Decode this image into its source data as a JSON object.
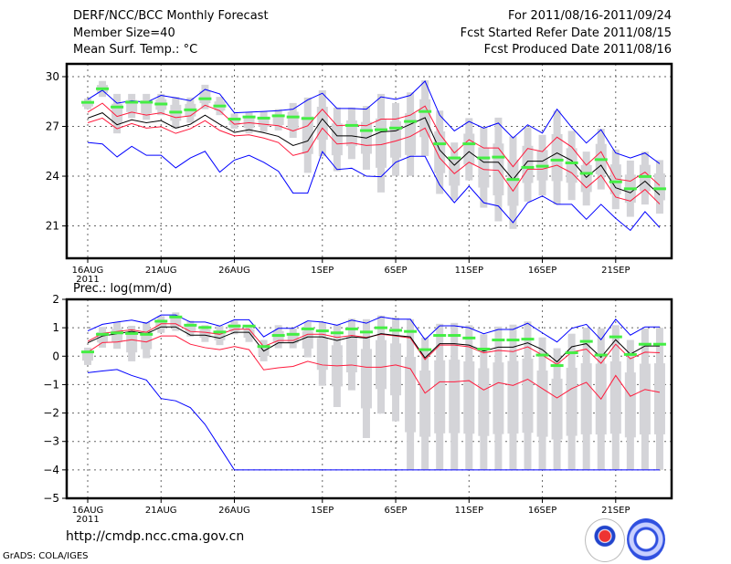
{
  "header": {
    "title": "DERF/NCC/BCC Monthly Forecast",
    "member_size": "Member Size=40",
    "variable": "Mean Surf. Temp.: °C",
    "period": "For 2011/08/16-2011/09/24",
    "start_date": "Fcst Started Refer Date 2011/08/15",
    "produced_date": "Fcst Produced Date 2011/08/16"
  },
  "footer": {
    "url": "http://cmdp.ncc.cma.gov.cn",
    "credit": "GrADS: COLA/IGES",
    "logos": [
      "BCC",
      "NCC"
    ]
  },
  "colors": {
    "max_min": "#0000ff",
    "spread": "#ff1a3c",
    "mean": "#000000",
    "green": "#44ee44",
    "box": "#d4d4d8",
    "grid": "#666666"
  },
  "chart_data": [
    {
      "type": "line",
      "name": "temperature",
      "ylabel": "",
      "ylim": [
        19.05,
        30.77
      ],
      "yticks": [
        21,
        24,
        27,
        30
      ],
      "x_days": "2011-08-16 .. 2011-09-24 (40 days)",
      "xticks": [
        {
          "day": 0,
          "label": "16AUG",
          "sub": "2011"
        },
        {
          "day": 5,
          "label": "21AUG"
        },
        {
          "day": 10,
          "label": "26AUG"
        },
        {
          "day": 16,
          "label": "1SEP"
        },
        {
          "day": 21,
          "label": "6SEP"
        },
        {
          "day": 26,
          "label": "11SEP"
        },
        {
          "day": 31,
          "label": "16SEP"
        },
        {
          "day": 36,
          "label": "21SEP"
        }
      ],
      "box_range": {
        "low": [
          28.04,
          28.78,
          26.58,
          27.5,
          27.4,
          27.68,
          26.86,
          27.22,
          28.04,
          27.68,
          26.86,
          26.58,
          26.67,
          26.76,
          26.31,
          24.2,
          25.2,
          24.3,
          25.03,
          24.39,
          23.02,
          24.02,
          24.02,
          25.21,
          22.93,
          22.56,
          23.75,
          22.1,
          21.28,
          20.82,
          22.47,
          22.83,
          22.29,
          22.56,
          22.23,
          23.2,
          22.01,
          21.55,
          22.29,
          21.74
        ],
        "high": [
          28.68,
          29.74,
          28.96,
          28.96,
          28.96,
          28.96,
          28.78,
          28.74,
          29.51,
          28.78,
          27.77,
          27.86,
          27.9,
          28.04,
          28.41,
          28.74,
          29.18,
          28.14,
          28.14,
          28.23,
          28.96,
          28.41,
          29.05,
          29.78,
          27.95,
          26.03,
          27.5,
          26.95,
          27.53,
          26.4,
          26.95,
          26.49,
          27.95,
          26.73,
          25.48,
          26.86,
          25.61,
          24.94,
          25.48,
          24.97
        ]
      },
      "series": [
        {
          "name": "max",
          "color": "#0000ff",
          "values": [
            28.63,
            29.18,
            28.4,
            28.55,
            28.45,
            28.87,
            28.72,
            28.55,
            29.23,
            28.96,
            27.82,
            27.86,
            27.9,
            27.95,
            28.04,
            28.6,
            29.0,
            28.08,
            28.08,
            28.04,
            28.78,
            28.63,
            28.87,
            29.73,
            27.68,
            26.73,
            27.3,
            26.9,
            27.2,
            26.3,
            27.1,
            26.6,
            28.04,
            26.94,
            26.0,
            26.8,
            25.4,
            25.1,
            25.4,
            24.75
          ]
        },
        {
          "name": "min",
          "color": "#0000ff",
          "values": [
            26.03,
            25.94,
            25.16,
            25.8,
            25.26,
            25.26,
            24.5,
            25.1,
            25.5,
            24.24,
            24.97,
            25.26,
            24.84,
            24.3,
            22.98,
            22.98,
            25.48,
            24.4,
            24.48,
            24.0,
            23.97,
            24.84,
            25.2,
            25.2,
            23.47,
            22.4,
            23.4,
            22.4,
            22.2,
            21.2,
            22.4,
            22.8,
            22.3,
            22.3,
            21.4,
            22.3,
            21.46,
            20.73,
            21.86,
            20.9
          ]
        },
        {
          "name": "upper",
          "color": "#ff1a3c",
          "values": [
            27.86,
            28.4,
            27.6,
            27.86,
            27.68,
            27.82,
            27.53,
            27.64,
            28.28,
            27.95,
            27.13,
            27.22,
            27.13,
            27.04,
            26.73,
            27.04,
            28.04,
            27.04,
            27.09,
            27.04,
            27.44,
            27.44,
            27.68,
            28.23,
            26.55,
            25.4,
            26.2,
            25.7,
            25.7,
            24.57,
            25.67,
            25.48,
            26.35,
            25.76,
            24.66,
            25.48,
            23.84,
            23.7,
            24.24,
            23.44
          ]
        },
        {
          "name": "lower",
          "color": "#ff1a3c",
          "values": [
            27.22,
            27.5,
            26.86,
            27.17,
            26.9,
            26.98,
            26.58,
            26.86,
            27.35,
            26.76,
            26.43,
            26.49,
            26.3,
            26.03,
            25.25,
            25.48,
            26.9,
            25.94,
            26.0,
            25.85,
            25.9,
            26.12,
            26.4,
            26.9,
            25.1,
            24.15,
            24.84,
            24.4,
            24.35,
            23.1,
            24.42,
            24.42,
            24.66,
            24.2,
            23.3,
            24.06,
            22.74,
            22.5,
            23.2,
            22.32
          ]
        },
        {
          "name": "mean",
          "color": "#000000",
          "values": [
            27.5,
            27.82,
            27.1,
            27.4,
            27.22,
            27.35,
            26.9,
            27.13,
            27.68,
            27.13,
            26.64,
            26.8,
            26.62,
            26.4,
            25.85,
            26.12,
            27.46,
            26.43,
            26.43,
            26.3,
            26.67,
            26.73,
            27.13,
            27.53,
            25.58,
            24.66,
            25.48,
            24.84,
            24.84,
            23.8,
            24.9,
            24.9,
            25.4,
            24.94,
            23.93,
            24.66,
            23.3,
            23.0,
            23.7,
            22.87
          ]
        },
        {
          "name": "green",
          "color": "#44ee44",
          "values": [
            28.45,
            29.27,
            28.17,
            28.46,
            28.46,
            28.35,
            27.86,
            28.0,
            28.67,
            28.23,
            27.44,
            27.57,
            27.5,
            27.64,
            27.57,
            27.48,
            null,
            null,
            27.06,
            26.75,
            26.8,
            26.9,
            27.3,
            27.9,
            25.95,
            25.1,
            25.95,
            25.1,
            25.15,
            23.8,
            24.53,
            24.6,
            24.97,
            24.8,
            24.17,
            25.0,
            23.66,
            23.24,
            23.98,
            23.24
          ]
        }
      ]
    },
    {
      "type": "line",
      "name": "precipitation",
      "ylabel": "Prec.: log(mm/d)",
      "ylim": [
        -5,
        2
      ],
      "yticks": [
        -5,
        -4,
        -3,
        -2,
        -1,
        0,
        1,
        2
      ],
      "xticks": [
        {
          "day": 0,
          "label": "16AUG",
          "sub": "2011"
        },
        {
          "day": 5,
          "label": "21AUG"
        },
        {
          "day": 10,
          "label": "26AUG"
        },
        {
          "day": 16,
          "label": "1SEP"
        },
        {
          "day": 21,
          "label": "6SEP"
        },
        {
          "day": 26,
          "label": "11SEP"
        },
        {
          "day": 31,
          "label": "16SEP"
        },
        {
          "day": 36,
          "label": "21SEP"
        }
      ],
      "box_range": {
        "low": [
          -0.31,
          0.3,
          0.26,
          -0.18,
          -0.07,
          0.82,
          0.89,
          0.69,
          0.5,
          0.39,
          0.77,
          0.5,
          -0.18,
          0.28,
          0.28,
          -0.04,
          -1.04,
          -1.79,
          -1.2,
          -2.88,
          -2.02,
          -2.29,
          -4,
          -4,
          -4,
          -4,
          -4,
          -4,
          -4,
          -4,
          -4,
          -4,
          -4,
          -4,
          -4,
          -4,
          -4,
          -4,
          -4,
          -4
        ],
        "high": [
          0.3,
          1.03,
          1.2,
          1.07,
          1.2,
          1.41,
          1.54,
          1.25,
          1.09,
          1.07,
          1.25,
          1.09,
          0.57,
          1.09,
          0.98,
          1.2,
          1.2,
          1.11,
          1.32,
          1.3,
          1.43,
          1.36,
          1.3,
          0.66,
          1.14,
          1.17,
          1.09,
          0.77,
          1.04,
          1.11,
          1.22,
          0.66,
          0.28,
          0.79,
          1.0,
          0.98,
          1.09,
          0.57,
          0.98,
          1.0
        ]
      },
      "series": [
        {
          "name": "max",
          "color": "#0000ff",
          "values": [
            0.89,
            1.12,
            1.2,
            1.27,
            1.16,
            1.45,
            1.45,
            1.2,
            1.2,
            1.06,
            1.28,
            1.28,
            0.68,
            0.98,
            0.98,
            1.24,
            1.2,
            1.09,
            1.27,
            1.16,
            1.38,
            1.3,
            1.3,
            0.58,
            1.07,
            1.07,
            1.0,
            0.79,
            0.94,
            0.94,
            1.16,
            0.82,
            0.5,
            0.98,
            1.12,
            0.58,
            1.3,
            0.74,
            1.03,
            1.03
          ]
        },
        {
          "name": "min",
          "color": "#0000ff",
          "values": [
            -0.58,
            -0.52,
            -0.47,
            -0.68,
            -0.84,
            -1.49,
            -1.57,
            -1.81,
            -2.4,
            -3.2,
            -4,
            -4,
            -4,
            -4,
            -4,
            -4,
            -4,
            -4,
            -4,
            -4,
            -4,
            -4,
            -4,
            -4,
            -4,
            -4,
            -4,
            -4,
            -4,
            -4,
            -4,
            -4,
            -4,
            -4,
            -4,
            -4,
            -4,
            -4,
            -4,
            -4
          ]
        },
        {
          "name": "upper",
          "color": "#ff1a3c",
          "values": [
            0.52,
            0.8,
            0.87,
            0.93,
            0.84,
            1.14,
            1.14,
            0.87,
            0.84,
            0.77,
            0.95,
            0.95,
            0.34,
            0.55,
            0.55,
            0.77,
            0.77,
            0.66,
            0.73,
            0.66,
            0.77,
            0.71,
            0.64,
            -0.12,
            0.39,
            0.39,
            0.33,
            0.12,
            0.2,
            0.16,
            0.33,
            0.04,
            -0.29,
            0.14,
            0.25,
            -0.25,
            0.42,
            -0.09,
            0.14,
            0.12
          ]
        },
        {
          "name": "lower",
          "color": "#ff1a3c",
          "values": [
            0.14,
            0.48,
            0.5,
            0.58,
            0.5,
            0.71,
            0.71,
            0.42,
            0.3,
            0.23,
            0.34,
            0.23,
            -0.48,
            -0.41,
            -0.36,
            -0.18,
            -0.31,
            -0.34,
            -0.31,
            -0.39,
            -0.39,
            -0.31,
            -0.44,
            -1.3,
            -0.9,
            -0.9,
            -0.86,
            -1.19,
            -0.93,
            -1.03,
            -0.81,
            -1.14,
            -1.47,
            -1.14,
            -0.92,
            -1.51,
            -0.68,
            -1.41,
            -1.17,
            -1.27
          ]
        },
        {
          "name": "mean",
          "color": "#000000",
          "values": [
            0.47,
            0.71,
            0.79,
            0.87,
            0.79,
            1.03,
            1.03,
            0.74,
            0.74,
            0.63,
            0.84,
            0.84,
            0.18,
            0.47,
            0.47,
            0.68,
            0.68,
            0.55,
            0.68,
            0.64,
            0.79,
            0.73,
            0.68,
            -0.06,
            0.44,
            0.44,
            0.39,
            0.18,
            0.32,
            0.32,
            0.47,
            0.23,
            -0.2,
            0.33,
            0.44,
            -0.04,
            0.58,
            0.07,
            0.36,
            0.36
          ]
        },
        {
          "name": "green",
          "color": "#44ee44",
          "values": [
            0.15,
            0.77,
            0.82,
            0.8,
            0.77,
            1.23,
            1.38,
            1.09,
            1.01,
            0.85,
            1.06,
            1.06,
            0.34,
            0.73,
            0.77,
            0.96,
            0.89,
            0.82,
            0.96,
            0.85,
            1.0,
            0.91,
            0.87,
            0.23,
            0.73,
            0.73,
            0.64,
            0.25,
            0.57,
            0.57,
            0.6,
            0.04,
            -0.33,
            0.12,
            0.52,
            0.04,
            0.68,
            0.06,
            0.42,
            0.42
          ]
        }
      ]
    }
  ]
}
